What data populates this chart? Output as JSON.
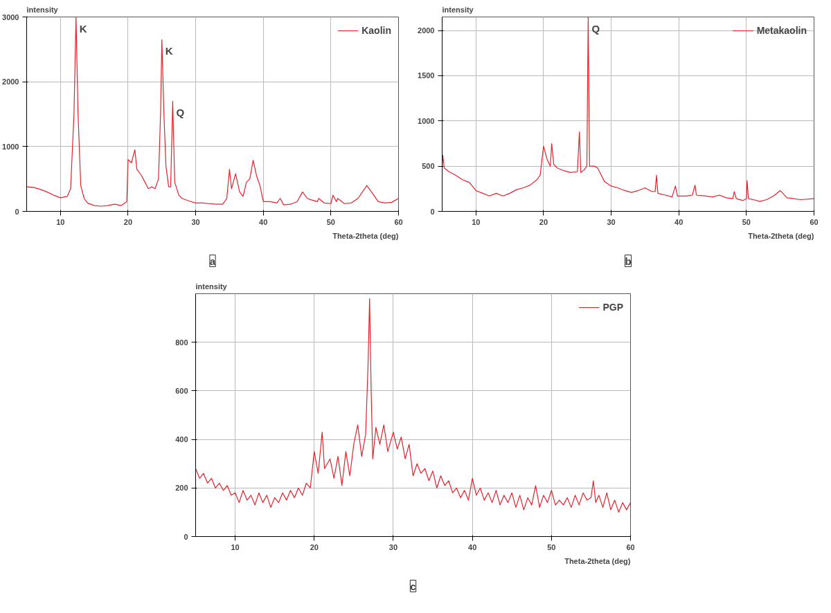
{
  "chart_data": [
    {
      "type": "line",
      "ylabel": "intensity",
      "xlabel": "Theta-2theta (deg)",
      "xlim": [
        5,
        60
      ],
      "ylim": [
        0,
        3000
      ],
      "xticks": [
        10,
        20,
        30,
        40,
        50,
        60
      ],
      "yticks": [
        0,
        1000,
        2000,
        3000
      ],
      "grid": true,
      "legend": "top right",
      "marker": "none",
      "line_style": "solid",
      "annotations": [
        {
          "text": "K",
          "x": 12.3,
          "y": 3000
        },
        {
          "text": "K",
          "x": 25,
          "y": 2650
        },
        {
          "text": "Q",
          "x": 26.6,
          "y": 1700
        },
        "a"
      ],
      "series": [
        {
          "name": "Kaolin",
          "color": "#e8202a",
          "x": [
            5,
            6,
            7,
            8,
            9,
            10,
            11,
            11.5,
            12,
            12.3,
            12.6,
            13,
            13.5,
            14,
            15,
            16,
            17,
            18,
            19,
            19.8,
            20,
            20.5,
            21,
            21.3,
            22,
            22.5,
            23,
            23.5,
            24,
            24.5,
            24.8,
            25,
            25.3,
            25.6,
            26,
            26.3,
            26.6,
            26.9,
            27.5,
            28,
            29,
            30,
            31,
            32,
            33,
            34,
            34.6,
            35,
            35.3,
            35.9,
            36.5,
            37,
            37.5,
            38,
            38.5,
            39,
            39.5,
            40,
            41,
            42,
            42.5,
            43,
            44,
            45,
            45.8,
            46.5,
            47,
            48,
            48.2,
            49,
            50,
            50.3,
            50.8,
            51,
            52,
            53,
            54,
            55,
            55.3,
            56,
            57,
            58,
            59,
            60
          ],
          "values": [
            380,
            370,
            340,
            300,
            250,
            210,
            230,
            350,
            1500,
            3000,
            1500,
            400,
            200,
            130,
            90,
            80,
            90,
            110,
            90,
            150,
            800,
            750,
            950,
            650,
            550,
            450,
            350,
            380,
            350,
            500,
            1500,
            2650,
            1500,
            700,
            380,
            380,
            1700,
            450,
            250,
            200,
            160,
            130,
            130,
            120,
            110,
            110,
            200,
            650,
            350,
            580,
            300,
            230,
            450,
            500,
            790,
            550,
            400,
            150,
            150,
            130,
            200,
            100,
            110,
            150,
            300,
            200,
            180,
            150,
            200,
            130,
            120,
            250,
            150,
            200,
            120,
            130,
            200,
            350,
            400,
            300,
            150,
            130,
            140,
            200
          ]
        }
      ]
    },
    {
      "type": "line",
      "ylabel": "intensity",
      "xlabel": "Theta-2theta (deg)",
      "xlim": [
        5,
        60
      ],
      "ylim": [
        0,
        2150
      ],
      "xticks": [
        10,
        20,
        30,
        40,
        50,
        60
      ],
      "yticks": [
        0,
        500,
        1000,
        1500,
        2000
      ],
      "grid": true,
      "legend": "top right",
      "marker": "none",
      "line_style": "solid",
      "annotations": [
        {
          "text": "Q",
          "x": 26.6,
          "y": 2150
        },
        "b"
      ],
      "series": [
        {
          "name": "Metakaolin",
          "color": "#e8202a",
          "x": [
            5,
            5.1,
            5.3,
            6,
            7,
            8,
            9,
            10,
            11,
            12,
            13,
            14,
            15,
            16,
            17,
            18,
            19,
            19.5,
            19.8,
            20,
            20.5,
            21,
            21.2,
            21.5,
            22,
            23,
            24,
            25,
            25.3,
            25.5,
            26,
            26.4,
            26.6,
            26.8,
            27.5,
            28,
            29,
            30,
            31,
            32,
            33,
            34,
            35,
            36,
            36.5,
            36.7,
            36.9,
            38,
            39,
            39.5,
            39.8,
            41,
            42,
            42.4,
            42.6,
            44,
            45,
            46,
            47,
            48,
            48.2,
            48.5,
            49.5,
            50,
            50.1,
            50.3,
            51,
            52,
            53,
            54,
            55,
            56,
            57,
            58,
            60
          ],
          "values": [
            500,
            620,
            480,
            440,
            400,
            350,
            320,
            230,
            200,
            170,
            200,
            170,
            200,
            240,
            260,
            290,
            350,
            400,
            600,
            720,
            580,
            500,
            750,
            520,
            480,
            450,
            430,
            440,
            880,
            430,
            460,
            500,
            2150,
            500,
            500,
            480,
            330,
            280,
            260,
            230,
            210,
            230,
            260,
            220,
            220,
            400,
            200,
            180,
            160,
            280,
            170,
            170,
            180,
            290,
            180,
            170,
            160,
            180,
            150,
            140,
            220,
            140,
            120,
            140,
            340,
            140,
            130,
            110,
            130,
            170,
            230,
            150,
            140,
            130,
            140
          ]
        }
      ]
    },
    {
      "type": "line",
      "ylabel": "intensity",
      "xlabel": "Theta-2theta (deg)",
      "xlim": [
        5,
        60
      ],
      "ylim": [
        0,
        1000
      ],
      "xticks": [
        10,
        20,
        30,
        40,
        50,
        60
      ],
      "yticks": [
        0,
        200,
        400,
        600,
        800
      ],
      "grid": true,
      "legend": "top right",
      "marker": "none",
      "line_style": "solid",
      "annotations": [
        "c"
      ],
      "series": [
        {
          "name": "PGP",
          "color": "#e8202a",
          "x": [
            5,
            5.5,
            6,
            6.5,
            7,
            7.5,
            8,
            8.5,
            9,
            9.5,
            10,
            10.5,
            11,
            11.5,
            12,
            12.5,
            13,
            13.5,
            14,
            14.5,
            15,
            15.5,
            16,
            16.5,
            17,
            17.5,
            18,
            18.5,
            19,
            19.5,
            20,
            20.5,
            21,
            21.3,
            22,
            22.5,
            23,
            23.5,
            24,
            24.5,
            25,
            25.5,
            26,
            26.5,
            26.8,
            27,
            27.2,
            27.4,
            27.8,
            28.3,
            28.8,
            29.3,
            30,
            30.5,
            31,
            31.5,
            32,
            32.5,
            33,
            33.5,
            34,
            34.5,
            35,
            35.5,
            36,
            36.5,
            37,
            37.5,
            38,
            38.5,
            39,
            39.5,
            40,
            40.5,
            41,
            41.5,
            42,
            42.5,
            43,
            43.5,
            44,
            44.5,
            45,
            45.5,
            46,
            46.5,
            47,
            47.5,
            48,
            48.5,
            49,
            49.5,
            50,
            50.5,
            51,
            51.5,
            52,
            52.5,
            53,
            53.5,
            54,
            54.5,
            55,
            55.3,
            55.6,
            56,
            56.5,
            57,
            57.5,
            58,
            58.5,
            59,
            59.5,
            60
          ],
          "values": [
            280,
            240,
            260,
            220,
            240,
            200,
            220,
            190,
            210,
            170,
            180,
            140,
            190,
            150,
            170,
            130,
            180,
            140,
            170,
            120,
            160,
            140,
            180,
            150,
            190,
            160,
            200,
            170,
            220,
            200,
            350,
            260,
            430,
            280,
            320,
            240,
            330,
            210,
            350,
            250,
            380,
            460,
            330,
            420,
            700,
            980,
            600,
            320,
            450,
            380,
            460,
            350,
            430,
            360,
            410,
            320,
            380,
            250,
            300,
            260,
            280,
            230,
            270,
            200,
            250,
            210,
            230,
            180,
            200,
            160,
            190,
            150,
            240,
            170,
            200,
            150,
            180,
            140,
            190,
            130,
            170,
            140,
            180,
            120,
            170,
            110,
            160,
            130,
            210,
            120,
            170,
            140,
            190,
            130,
            150,
            130,
            160,
            120,
            170,
            130,
            180,
            150,
            160,
            230,
            140,
            170,
            120,
            180,
            110,
            150,
            100,
            140,
            110,
            140
          ]
        }
      ]
    }
  ]
}
